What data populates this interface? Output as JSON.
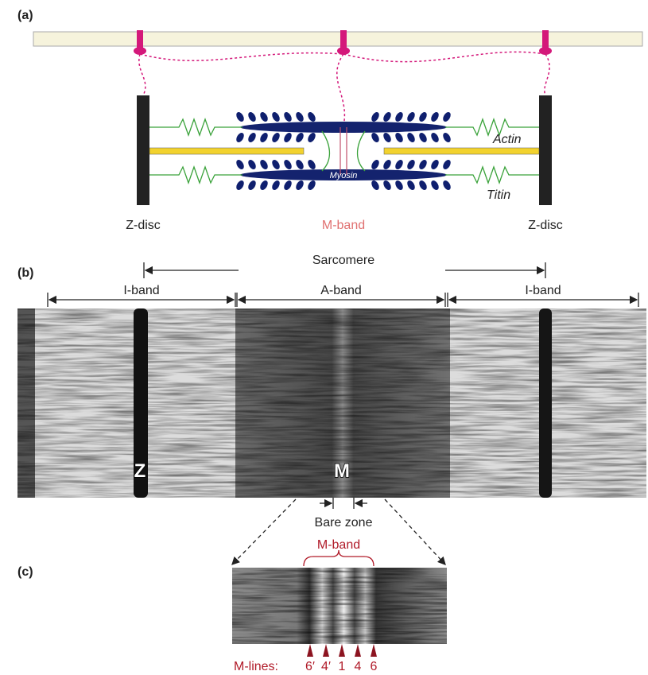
{
  "panel_a": {
    "label": "(a)",
    "z_disc_left": "Z-disc",
    "m_band": "M-band",
    "z_disc_right": "Z-disc",
    "actin": "Actin",
    "titin": "Titin",
    "myosin": "Myosin"
  },
  "panel_b": {
    "label": "(b)",
    "sarcomere": "Sarcomere",
    "bands": [
      "I-band",
      "A-band",
      "I-band"
    ],
    "z_mark": "Z",
    "m_mark": "M",
    "bare_zone": "Bare zone"
  },
  "panel_c": {
    "label": "(c)",
    "m_band": "M-band",
    "m_lines_label": "M-lines:",
    "m_lines": [
      "6′",
      "4′",
      "1",
      "4",
      "6"
    ]
  }
}
